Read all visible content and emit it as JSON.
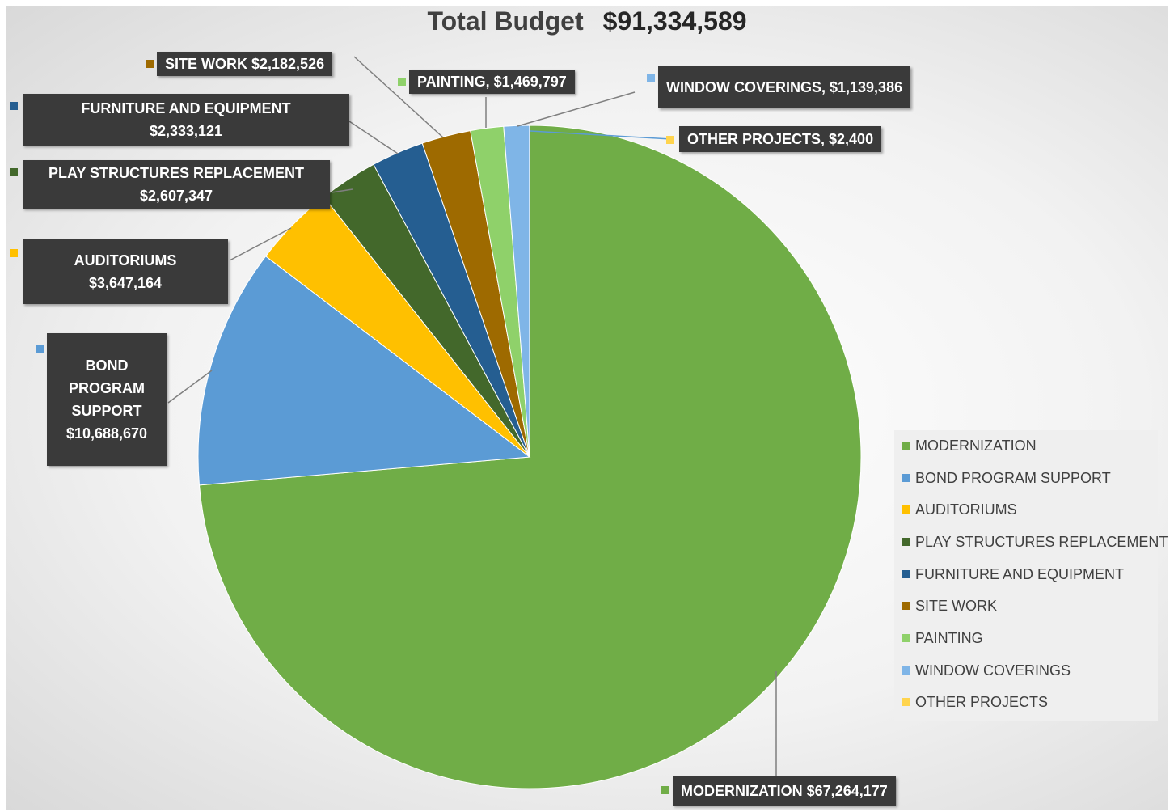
{
  "title": {
    "label": "Total Budget",
    "total": "$91,334,589"
  },
  "colors": {
    "modernization": "#70ad47",
    "bond": "#5b9bd5",
    "auditoriums": "#ffc000",
    "play": "#43682b",
    "furniture": "#255e91",
    "site": "#9e6a00",
    "painting": "#8fd16a",
    "window": "#7fb5e7",
    "other": "#ffd44d"
  },
  "chart_data": {
    "type": "pie",
    "title": "Total Budget $91,334,589",
    "legend_position": "right",
    "series": [
      {
        "name": "MODERNIZATION",
        "value": 67264177,
        "color": "#70ad47"
      },
      {
        "name": "BOND PROGRAM SUPPORT",
        "value": 10688670,
        "color": "#5b9bd5"
      },
      {
        "name": "AUDITORIUMS",
        "value": 3647164,
        "color": "#ffc000"
      },
      {
        "name": "PLAY STRUCTURES REPLACEMENT",
        "value": 2607347,
        "color": "#43682b"
      },
      {
        "name": "FURNITURE AND EQUIPMENT",
        "value": 2333121,
        "color": "#255e91"
      },
      {
        "name": "SITE WORK",
        "value": 2182526,
        "color": "#9e6a00"
      },
      {
        "name": "PAINTING",
        "value": 1469797,
        "color": "#8fd16a"
      },
      {
        "name": "WINDOW COVERINGS",
        "value": 1139386,
        "color": "#7fb5e7"
      },
      {
        "name": "OTHER PROJECTS",
        "value": 2400,
        "color": "#ffd44d"
      }
    ]
  },
  "labels": {
    "modernization": "MODERNIZATION  $67,264,177",
    "bond_line1": "BOND",
    "bond_line2": "PROGRAM",
    "bond_line3": "SUPPORT",
    "bond_line4": "$10,688,670",
    "auditoriums_line1": "AUDITORIUMS",
    "auditoriums_line2": "$3,647,164",
    "play_line1": "PLAY STRUCTURES REPLACEMENT",
    "play_line2": "$2,607,347",
    "furniture_line1": "FURNITURE AND EQUIPMENT",
    "furniture_line2": "$2,333,121",
    "site": "SITE WORK  $2,182,526",
    "painting": "PAINTING,  $1,469,797",
    "window": "WINDOW COVERINGS,  $1,139,386",
    "other": "OTHER PROJECTS,  $2,400"
  },
  "legend": [
    "MODERNIZATION",
    "BOND PROGRAM SUPPORT",
    "AUDITORIUMS",
    "PLAY STRUCTURES REPLACEMENT",
    "FURNITURE AND EQUIPMENT",
    "SITE WORK",
    "PAINTING",
    "WINDOW COVERINGS",
    "OTHER PROJECTS"
  ]
}
